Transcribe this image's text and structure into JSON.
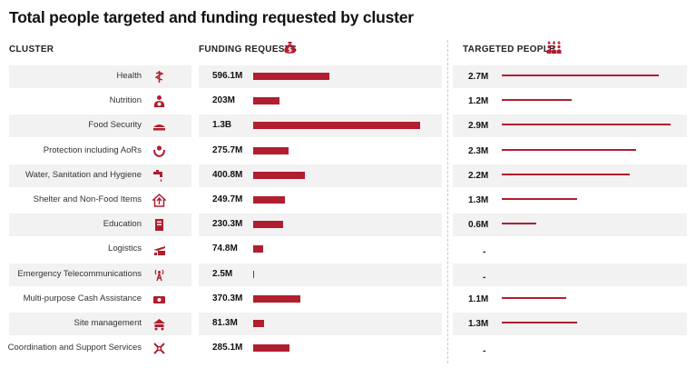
{
  "title": "Total people targeted and funding requested by cluster",
  "headers": {
    "cluster": "CLUSTER",
    "funding": "FUNDING REQUESTS",
    "targeted": "TARGETED PEOPLE"
  },
  "colors": {
    "accent": "#b01e30",
    "band": "#f2f2f2"
  },
  "chart_data": {
    "type": "bar",
    "title": "Total people targeted and funding requested by cluster",
    "categories": [
      "Health",
      "Nutrition",
      "Food Security",
      "Protection including AoRs",
      "Water, Sanitation and Hygiene",
      "Shelter and Non-Food Items",
      "Education",
      "Logistics",
      "Emergency Telecommunications",
      "Multi-purpose Cash Assistance",
      "Site management",
      "Coordination and Support Services"
    ],
    "icons": [
      "health-icon",
      "nutrition-icon",
      "food-security-icon",
      "protection-icon",
      "wash-icon",
      "shelter-icon",
      "education-icon",
      "logistics-icon",
      "telecom-icon",
      "cash-icon",
      "site-management-icon",
      "coordination-icon"
    ],
    "series": [
      {
        "name": "FUNDING REQUESTS",
        "labels": [
          "596.1M",
          "203M",
          "1.3B",
          "275.7M",
          "400.8M",
          "249.7M",
          "230.3M",
          "74.8M",
          "2.5M",
          "370.3M",
          "81.3M",
          "285.1M"
        ],
        "values": [
          596.1,
          203,
          1300,
          275.7,
          400.8,
          249.7,
          230.3,
          74.8,
          2.5,
          370.3,
          81.3,
          285.1
        ]
      },
      {
        "name": "TARGETED PEOPLE",
        "labels": [
          "2.7M",
          "1.2M",
          "2.9M",
          "2.3M",
          "2.2M",
          "1.3M",
          "0.6M",
          "-",
          "-",
          "1.1M",
          "1.3M",
          "-"
        ],
        "values": [
          2.7,
          1.2,
          2.9,
          2.3,
          2.2,
          1.3,
          0.6,
          null,
          null,
          1.1,
          1.3,
          null
        ]
      }
    ]
  }
}
